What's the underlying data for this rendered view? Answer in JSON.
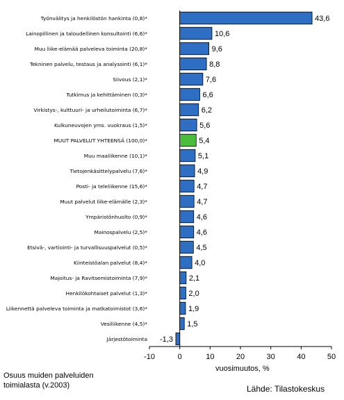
{
  "chart_data": {
    "type": "bar",
    "orientation": "horizontal",
    "categories": [
      "Työnvälitys ja henkilöstön hankinta (0,8)*",
      "Lainopillinen ja taloudellinen konsultointi (6,6)*",
      "Muu liike-elämää palveleva toiminta (20,8)*",
      "Tekninen palvelu, testaus ja analysointi (6,1)*",
      "Siivous (2,1)*",
      "Tutkimus ja kehittäminen (0,3)*",
      "Virkistys-, kulttuuri- ja urheilutoiminta (6,7)*",
      "Kulkuneuvojen yms. vuokraus (1,5)*",
      "MUUT PALVELUT YHTEENSÄ (100,0)*",
      "Muu maaliikenne (10,1)*",
      "Tietojenkäsittelypalvelu (7,6)*",
      "Posti- ja teleliikenne (15,6)*",
      "Muut palvelut liike-elämälle (2,3)*",
      "Ympäristönhuolto (0,9)*",
      "Mainospalvelu (2,5)*",
      "Etsivä-, vartiointi- ja turvallisuuspalvelut (0,5)*",
      "Kiinteistöalan palvelut (8,4)*",
      "Majoitus- ja Ravitsemistoiminta (7,9)*",
      "Henkilökohtaiset palvelut (1,3)*",
      "Liikennettä palveleva toiminta ja matkatoimistot (3,6)*",
      "Vesiliikenne (4,5)*",
      "Järjestötoiminta"
    ],
    "values": [
      43.6,
      10.6,
      9.6,
      8.8,
      7.6,
      6.6,
      6.2,
      5.6,
      5.4,
      5.1,
      4.9,
      4.7,
      4.7,
      4.6,
      4.6,
      4.5,
      4.0,
      2.1,
      2.0,
      1.9,
      1.5,
      -1.3
    ],
    "value_labels": [
      "43,6",
      "10,6",
      "9,6",
      "8,8",
      "7,6",
      "6,6",
      "6,2",
      "5,6",
      "5,4",
      "5,1",
      "4,9",
      "4,7",
      "4,7",
      "4,6",
      "4,6",
      "4,5",
      "4,0",
      "2,1",
      "2,0",
      "1,9",
      "1,5",
      "-1,3"
    ],
    "highlight_index": 8,
    "xlim": [
      -10,
      50
    ],
    "xticks": [
      -10,
      0,
      10,
      20,
      30,
      40,
      50
    ],
    "xlabel": "vuosimuutos, %",
    "grid": "none",
    "colors": {
      "bar": "#2e6fc4",
      "highlight": "#4bbd3c",
      "edge": "#000000"
    }
  },
  "footnote_line1": "Osuus muiden palveluiden",
  "footnote_line2": "toimialasta (v.2003)",
  "source": "Lähde: Tilastokeskus"
}
